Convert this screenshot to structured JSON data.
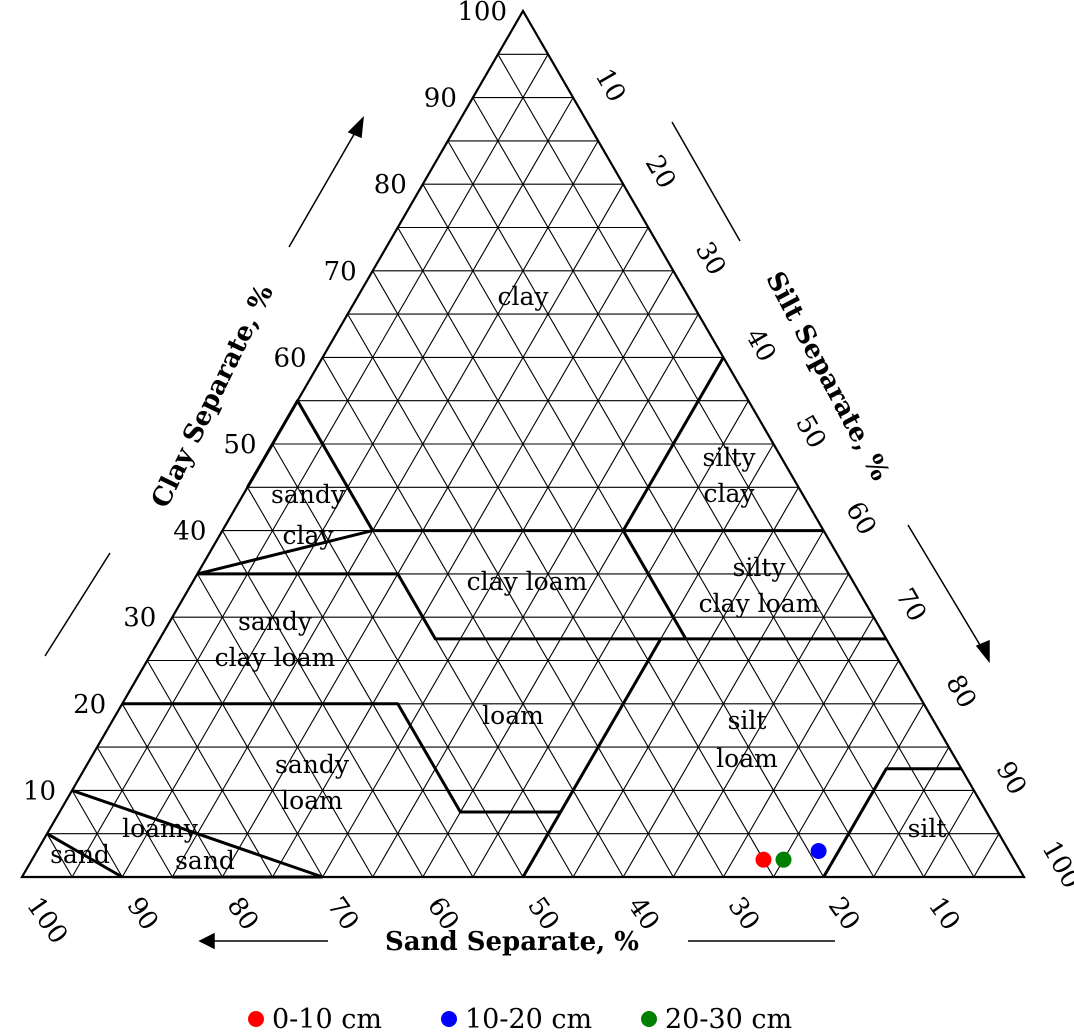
{
  "chart_data": {
    "type": "scatter",
    "subtype": "ternary",
    "axes": {
      "clay": {
        "label": "Clay Separate, %",
        "ticks": [
          "10",
          "20",
          "30",
          "40",
          "50",
          "60",
          "70",
          "80",
          "90",
          "100"
        ]
      },
      "silt": {
        "label": "Silt Separate, %",
        "ticks": [
          "10",
          "20",
          "30",
          "40",
          "50",
          "60",
          "70",
          "80",
          "90",
          "100"
        ]
      },
      "sand": {
        "label": "Sand Separate, %",
        "ticks": [
          "100",
          "90",
          "80",
          "70",
          "60",
          "50",
          "40",
          "30",
          "20",
          "10"
        ]
      }
    },
    "grid": true,
    "regions": [
      {
        "name": "clay",
        "lines": [
          "clay"
        ]
      },
      {
        "name": "sandy clay",
        "lines": [
          "sandy",
          "clay"
        ]
      },
      {
        "name": "silty clay",
        "lines": [
          "silty",
          "clay"
        ]
      },
      {
        "name": "clay loam",
        "lines": [
          "clay loam"
        ]
      },
      {
        "name": "silty clay loam",
        "lines": [
          "silty",
          "clay loam"
        ]
      },
      {
        "name": "sandy clay loam",
        "lines": [
          "sandy",
          "clay loam"
        ]
      },
      {
        "name": "loam",
        "lines": [
          "loam"
        ]
      },
      {
        "name": "silt loam",
        "lines": [
          "silt",
          "loam"
        ]
      },
      {
        "name": "sandy loam",
        "lines": [
          "sandy",
          "loam"
        ]
      },
      {
        "name": "loamy sand",
        "lines": [
          "loamy",
          "sand"
        ]
      },
      {
        "name": "sand",
        "lines": [
          "sand"
        ]
      },
      {
        "name": "silt",
        "lines": [
          "silt"
        ]
      }
    ],
    "series": [
      {
        "name": "0-10 cm",
        "color": "#ff0000",
        "sand": 25,
        "silt": 73,
        "clay": 2
      },
      {
        "name": "10-20 cm",
        "color": "#0000ff",
        "sand": 19,
        "silt": 78,
        "clay": 3
      },
      {
        "name": "20-30 cm",
        "color": "#008000",
        "sand": 23,
        "silt": 75,
        "clay": 2
      }
    ],
    "legend_position": "bottom"
  }
}
